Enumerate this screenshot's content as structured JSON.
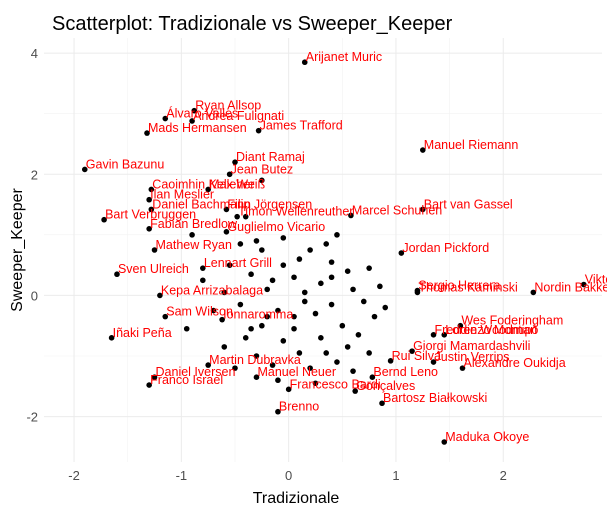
{
  "chart_data": {
    "type": "scatter",
    "title": "Scatterplot: Tradizionale vs Sweeper_Keeper",
    "xlabel": "Tradizionale",
    "ylabel": "Sweeper_Keeper",
    "xlim": [
      -2.28,
      2.92
    ],
    "ylim": [
      -2.75,
      4.25
    ],
    "x_ticks": [
      -2,
      -1,
      0,
      1,
      2
    ],
    "y_ticks": [
      -2,
      0,
      2,
      4
    ],
    "grid": true,
    "point_color": "#000000",
    "label_color": "#ff0000",
    "labeled_points": [
      {
        "x": 0.15,
        "y": 3.85,
        "label": "Arijanet Muric"
      },
      {
        "x": -0.88,
        "y": 3.05,
        "label": "Ryan Allsop"
      },
      {
        "x": -1.15,
        "y": 2.92,
        "label": "Álvaro Valles"
      },
      {
        "x": -0.9,
        "y": 2.88,
        "label": "Andrea Fulignati"
      },
      {
        "x": -1.32,
        "y": 2.68,
        "label": "Mads Hermansen"
      },
      {
        "x": -0.28,
        "y": 2.72,
        "label": "James Trafford"
      },
      {
        "x": 1.25,
        "y": 2.4,
        "label": "Manuel Riemann"
      },
      {
        "x": -1.9,
        "y": 2.08,
        "label": "Gavin Bazunu"
      },
      {
        "x": -0.5,
        "y": 2.2,
        "label": "Diant Ramaj"
      },
      {
        "x": -0.55,
        "y": 2.0,
        "label": "Jean Butez"
      },
      {
        "x": -1.28,
        "y": 1.75,
        "label": "Caoimhin Kelleher"
      },
      {
        "x": -0.75,
        "y": 1.75,
        "label": "Max Weiß"
      },
      {
        "x": -1.3,
        "y": 1.58,
        "label": "Ilan Meslier"
      },
      {
        "x": -1.28,
        "y": 1.42,
        "label": "Daniel Bachmann"
      },
      {
        "x": -0.58,
        "y": 1.42,
        "label": "Filip Jörgensen"
      },
      {
        "x": -0.48,
        "y": 1.3,
        "label": "Timon Wellenreuther"
      },
      {
        "x": 0.58,
        "y": 1.32,
        "label": "Marcel Schuhen"
      },
      {
        "x": 1.25,
        "y": 1.42,
        "label": "Bart van Gassel"
      },
      {
        "x": -1.72,
        "y": 1.25,
        "label": "Bart Verbruggen"
      },
      {
        "x": -1.3,
        "y": 1.1,
        "label": "Fabian Bredlow"
      },
      {
        "x": -0.58,
        "y": 1.05,
        "label": "Guglielmo Vicario"
      },
      {
        "x": -1.25,
        "y": 0.75,
        "label": "Mathew Ryan"
      },
      {
        "x": 1.05,
        "y": 0.7,
        "label": "Jordan Pickford"
      },
      {
        "x": -0.8,
        "y": 0.45,
        "label": "Lennart Grill"
      },
      {
        "x": -1.6,
        "y": 0.35,
        "label": "Sven Ulreich"
      },
      {
        "x": 1.2,
        "y": 0.08,
        "label": "Sergio Herrera"
      },
      {
        "x": 1.2,
        "y": 0.05,
        "label": "Thomas Kaminski"
      },
      {
        "x": 2.75,
        "y": 0.18,
        "label": "Viktor"
      },
      {
        "x": 2.28,
        "y": 0.05,
        "label": "Nordin Bakker"
      },
      {
        "x": -1.2,
        "y": 0.0,
        "label": "Kepa Arrizabalaga"
      },
      {
        "x": -1.15,
        "y": -0.35,
        "label": "Sam Wilson"
      },
      {
        "x": -0.62,
        "y": -0.4,
        "label": "Ionnaromma"
      },
      {
        "x": -1.65,
        "y": -0.7,
        "label": "Iñaki Peña"
      },
      {
        "x": 1.6,
        "y": -0.5,
        "label": "Wes Foderingham"
      },
      {
        "x": 1.45,
        "y": -0.65,
        "label": "Lorenzo Montipò"
      },
      {
        "x": 1.35,
        "y": -0.65,
        "label": "Freddie Woodman"
      },
      {
        "x": 1.15,
        "y": -0.92,
        "label": "Giorgi Mamardashvili"
      },
      {
        "x": 0.95,
        "y": -1.08,
        "label": "Rui Silva"
      },
      {
        "x": 1.35,
        "y": -1.1,
        "label": "Justin Verrips"
      },
      {
        "x": -0.75,
        "y": -1.15,
        "label": "Martin Dubravka"
      },
      {
        "x": 1.62,
        "y": -1.2,
        "label": "Alexandre Oukidja"
      },
      {
        "x": -1.25,
        "y": -1.35,
        "label": "Daniel Iversen"
      },
      {
        "x": -0.3,
        "y": -1.35,
        "label": "Manuel Neuer"
      },
      {
        "x": 0.78,
        "y": -1.35,
        "label": "Bernd Leno"
      },
      {
        "x": -1.3,
        "y": -1.48,
        "label": "Franco Israel"
      },
      {
        "x": 0.0,
        "y": -1.55,
        "label": "Francesco Bardi"
      },
      {
        "x": 0.62,
        "y": -1.58,
        "label": "Gonçalves"
      },
      {
        "x": 0.87,
        "y": -1.78,
        "label": "Bartosz Białkowski"
      },
      {
        "x": -0.1,
        "y": -1.92,
        "label": "Brenno"
      },
      {
        "x": 1.45,
        "y": -2.42,
        "label": "Maduka Okoye"
      }
    ],
    "other_points": [
      [
        -0.25,
        1.9
      ],
      [
        -0.4,
        1.3
      ],
      [
        -0.9,
        1.0
      ],
      [
        -0.3,
        0.9
      ],
      [
        -0.25,
        0.75
      ],
      [
        0.2,
        0.75
      ],
      [
        0.35,
        0.85
      ],
      [
        -0.05,
        0.5
      ],
      [
        0.4,
        0.55
      ],
      [
        0.55,
        0.4
      ],
      [
        0.75,
        0.45
      ],
      [
        -0.35,
        0.35
      ],
      [
        0.05,
        0.3
      ],
      [
        0.3,
        0.2
      ],
      [
        0.6,
        0.1
      ],
      [
        -0.2,
        0.1
      ],
      [
        -0.6,
        0.05
      ],
      [
        0.15,
        -0.1
      ],
      [
        0.4,
        -0.15
      ],
      [
        0.7,
        -0.1
      ],
      [
        -0.1,
        -0.25
      ],
      [
        -0.45,
        -0.15
      ],
      [
        0.25,
        -0.3
      ],
      [
        -0.25,
        -0.5
      ],
      [
        0.05,
        -0.55
      ],
      [
        0.5,
        -0.5
      ],
      [
        0.8,
        -0.35
      ],
      [
        -0.7,
        -0.25
      ],
      [
        -0.4,
        -0.7
      ],
      [
        -0.05,
        -0.75
      ],
      [
        0.3,
        -0.7
      ],
      [
        -0.95,
        -0.55
      ],
      [
        -0.6,
        -0.85
      ],
      [
        0.1,
        -0.95
      ],
      [
        0.55,
        -0.85
      ],
      [
        -0.3,
        -1.0
      ],
      [
        0.45,
        -1.1
      ],
      [
        -0.15,
        -1.15
      ],
      [
        0.2,
        -1.2
      ],
      [
        0.6,
        -1.25
      ],
      [
        -0.5,
        -1.2
      ],
      [
        -0.05,
        0.95
      ],
      [
        0.45,
        1.0
      ],
      [
        0.1,
        0.6
      ],
      [
        -0.55,
        0.5
      ],
      [
        0.85,
        0.15
      ],
      [
        -0.8,
        0.25
      ],
      [
        0.35,
        -0.95
      ],
      [
        -0.2,
        -0.35
      ],
      [
        0.65,
        -0.65
      ],
      [
        -0.35,
        -0.55
      ],
      [
        0.15,
        0.05
      ],
      [
        0.75,
        -0.95
      ],
      [
        -0.1,
        -1.4
      ],
      [
        0.25,
        -1.45
      ],
      [
        0.4,
        0.3
      ],
      [
        -0.45,
        0.85
      ],
      [
        0.9,
        -0.2
      ],
      [
        0.05,
        -0.35
      ],
      [
        -0.15,
        0.25
      ]
    ]
  }
}
